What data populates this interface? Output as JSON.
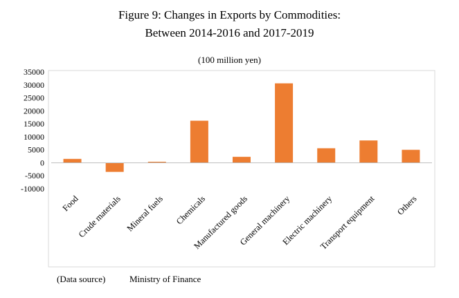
{
  "chart_data": {
    "type": "bar",
    "title_lines": [
      "Figure 9: Changes in Exports by Commodities:",
      "Between 2014-2016 and 2017-2019"
    ],
    "unit_label": "(100 million yen)",
    "categories": [
      "Food",
      "Crude materials",
      "Mineral fuels",
      "Chemicals",
      "Manufactured goods",
      "General machinery",
      "Electric machinery",
      "Transport equipment",
      "Others"
    ],
    "values": [
      1500,
      -3500,
      400,
      16200,
      2300,
      30600,
      5600,
      8600,
      5000
    ],
    "ylim": [
      -10000,
      35000
    ],
    "yticks": [
      -10000,
      -5000,
      0,
      5000,
      10000,
      15000,
      20000,
      25000,
      30000,
      35000
    ],
    "grid": false,
    "bar_color": "#ED7D31",
    "source_label": "(Data source)",
    "source_value": "Ministry of Finance"
  }
}
